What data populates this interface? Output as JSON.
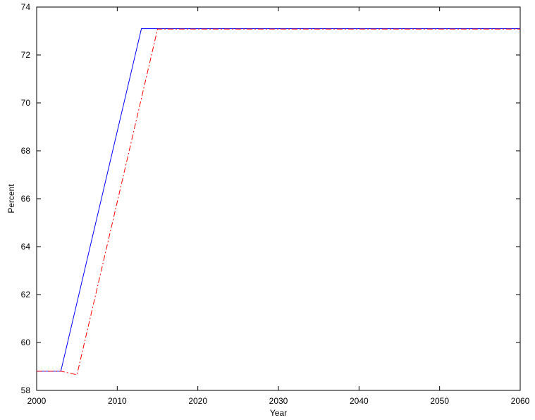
{
  "chart_data": {
    "type": "line",
    "title": "",
    "xlabel": "Year",
    "ylabel": "Percent",
    "xlim": [
      2000,
      2060
    ],
    "ylim": [
      58,
      74
    ],
    "x_ticks": [
      2000,
      2010,
      2020,
      2030,
      2040,
      2050,
      2060
    ],
    "y_ticks": [
      58,
      60,
      62,
      64,
      66,
      68,
      70,
      72,
      74
    ],
    "grid": false,
    "legend": "none",
    "series": [
      {
        "color": "#0000ff",
        "style": "solid",
        "points": [
          [
            2000,
            58.8
          ],
          [
            2003,
            58.8
          ],
          [
            2013,
            73.1
          ],
          [
            2060,
            73.1
          ]
        ]
      },
      {
        "color": "#ff0000",
        "style": "dashdot",
        "points": [
          [
            2000,
            58.8
          ],
          [
            2003,
            58.8
          ],
          [
            2005,
            58.65
          ],
          [
            2015,
            73.08
          ],
          [
            2060,
            73.08
          ]
        ]
      }
    ]
  }
}
